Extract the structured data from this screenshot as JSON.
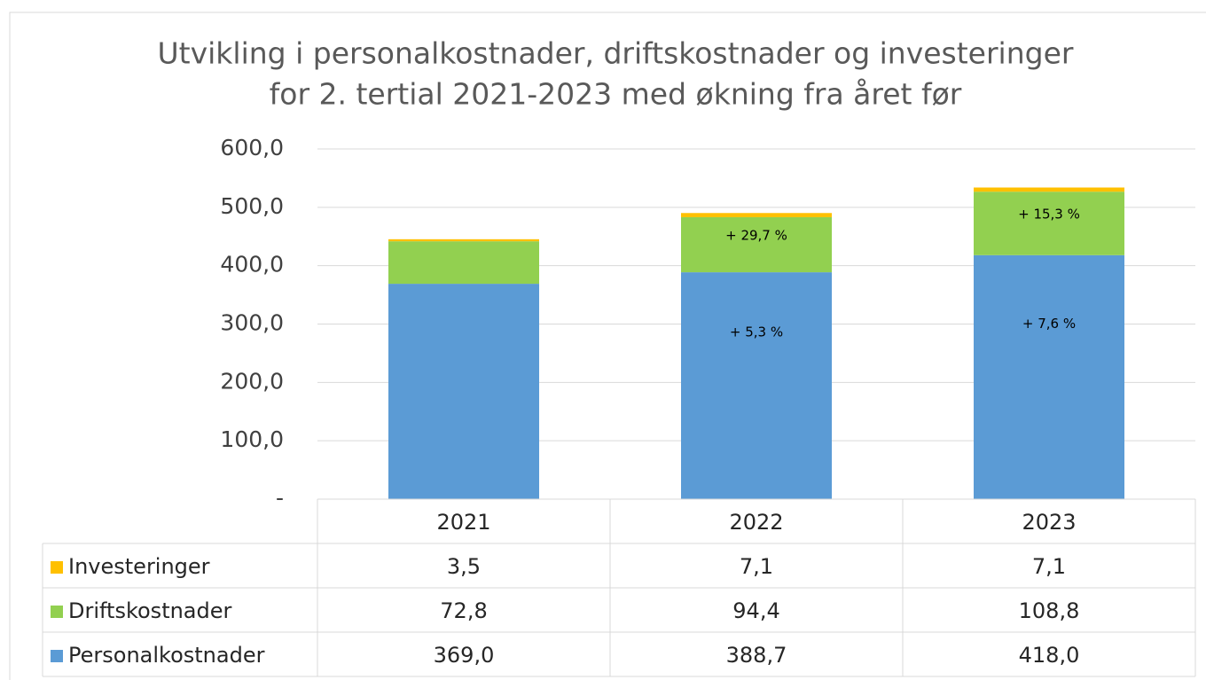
{
  "chart_data": {
    "type": "bar",
    "stacked": true,
    "title": [
      "Utvikling i personalkostnader, driftskostnader og investeringer",
      "for 2. tertial 2021-2023 med økning fra året før"
    ],
    "categories": [
      "2021",
      "2022",
      "2023"
    ],
    "series": [
      {
        "name": "Personalkostnader",
        "color": "#5b9bd5",
        "values": [
          369.0,
          388.7,
          418.0
        ],
        "value_labels": [
          "369,0",
          "388,7",
          "418,0"
        ],
        "annotations": [
          null,
          "+ 5,3 %",
          "+ 7,6 %"
        ]
      },
      {
        "name": "Driftskostnader",
        "color": "#92d050",
        "values": [
          72.8,
          94.4,
          108.8
        ],
        "value_labels": [
          "72,8",
          "94,4",
          "108,8"
        ],
        "annotations": [
          null,
          "+ 29,7 %",
          "+ 15,3 %"
        ]
      },
      {
        "name": "Investeringer",
        "color": "#ffc000",
        "values": [
          3.5,
          7.1,
          7.1
        ],
        "value_labels": [
          "3,5",
          "7,1",
          "7,1"
        ]
      }
    ],
    "ylim": [
      0,
      600
    ],
    "yticks": [
      {
        "value": 0,
        "label": "-"
      },
      {
        "value": 100,
        "label": "100,0"
      },
      {
        "value": 200,
        "label": "200,0"
      },
      {
        "value": 300,
        "label": "300,0"
      },
      {
        "value": 400,
        "label": "400,0"
      },
      {
        "value": 500,
        "label": "500,0"
      },
      {
        "value": 600,
        "label": "600,0"
      }
    ],
    "grid": true
  }
}
